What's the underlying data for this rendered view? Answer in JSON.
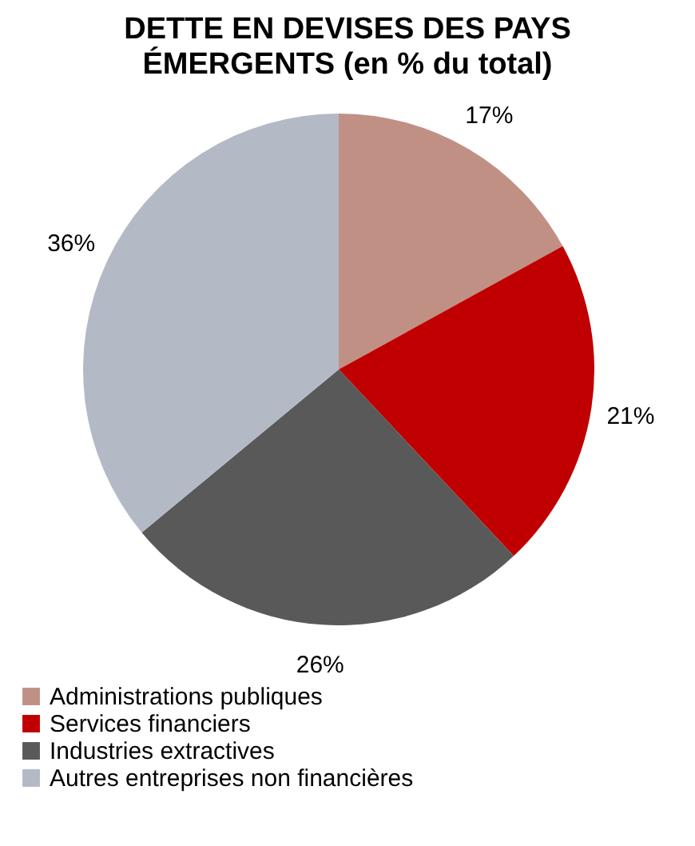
{
  "chart_data": {
    "type": "pie",
    "title": "DETTE EN DEVISES DES PAYS ÉMERGENTS (en % du total)",
    "categories": [
      "Administrations publiques",
      "Services financiers",
      "Industries extractives",
      "Autres entreprises non financières"
    ],
    "values": [
      17,
      21,
      26,
      36
    ],
    "colors": [
      "#c19085",
      "#c00000",
      "#595959",
      "#b3bac6"
    ],
    "value_labels": [
      "17%",
      "21%",
      "26%",
      "36%"
    ],
    "legend": "bottom"
  }
}
